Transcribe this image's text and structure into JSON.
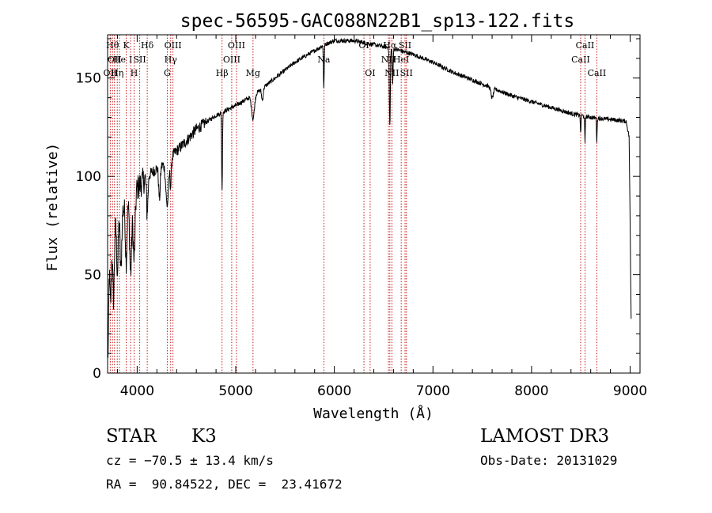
{
  "chart_data": {
    "type": "line",
    "title": "spec-56595-GAC088N22B1_sp13-122.fits",
    "xlabel": "Wavelength (Å)",
    "ylabel": "Flux (relative)",
    "xlim": [
      3700,
      9100
    ],
    "ylim": [
      0,
      172
    ],
    "x_ticks": [
      4000,
      5000,
      6000,
      7000,
      8000,
      9000
    ],
    "y_ticks": [
      0,
      50,
      100,
      150
    ],
    "grid": false,
    "continuum": [
      [
        3700,
        62
      ],
      [
        3800,
        80
      ],
      [
        3900,
        86
      ],
      [
        4000,
        94
      ],
      [
        4100,
        100
      ],
      [
        4200,
        104
      ],
      [
        4300,
        107
      ],
      [
        4400,
        113
      ],
      [
        4500,
        118
      ],
      [
        4600,
        124
      ],
      [
        4800,
        131
      ],
      [
        5000,
        136
      ],
      [
        5200,
        142
      ],
      [
        5400,
        150
      ],
      [
        5600,
        158
      ],
      [
        5800,
        164
      ],
      [
        5900,
        167
      ],
      [
        6000,
        169
      ],
      [
        6200,
        169
      ],
      [
        6400,
        167
      ],
      [
        6600,
        165
      ],
      [
        6800,
        162
      ],
      [
        7000,
        158
      ],
      [
        7200,
        153
      ],
      [
        7400,
        149
      ],
      [
        7600,
        145
      ],
      [
        7800,
        141
      ],
      [
        8000,
        138
      ],
      [
        8200,
        135
      ],
      [
        8400,
        132
      ],
      [
        8600,
        130
      ],
      [
        8800,
        129
      ],
      [
        8960,
        128
      ],
      [
        8990,
        120
      ],
      [
        9010,
        28
      ]
    ],
    "absorption_features": [
      {
        "x": 3705,
        "depth": 55,
        "width": 6
      },
      {
        "x": 3730,
        "depth": 32,
        "width": 8
      },
      {
        "x": 3760,
        "depth": 35,
        "width": 8
      },
      {
        "x": 3800,
        "depth": 28,
        "width": 8
      },
      {
        "x": 3835,
        "depth": 30,
        "width": 8
      },
      {
        "x": 3889,
        "depth": 28,
        "width": 8
      },
      {
        "x": 3934,
        "depth": 38,
        "width": 10
      },
      {
        "x": 3969,
        "depth": 34,
        "width": 10
      },
      {
        "x": 4102,
        "depth": 18,
        "width": 8
      },
      {
        "x": 4226,
        "depth": 16,
        "width": 8
      },
      {
        "x": 4305,
        "depth": 22,
        "width": 14
      },
      {
        "x": 4340,
        "depth": 14,
        "width": 6
      },
      {
        "x": 4861,
        "depth": 40,
        "width": 4
      },
      {
        "x": 5175,
        "depth": 12,
        "width": 14
      },
      {
        "x": 5270,
        "depth": 6,
        "width": 8
      },
      {
        "x": 5893,
        "depth": 22,
        "width": 4
      },
      {
        "x": 6563,
        "depth": 40,
        "width": 5
      },
      {
        "x": 6592,
        "depth": 18,
        "width": 4
      },
      {
        "x": 7600,
        "depth": 5,
        "width": 12
      },
      {
        "x": 8498,
        "depth": 10,
        "width": 3
      },
      {
        "x": 8542,
        "depth": 14,
        "width": 3
      },
      {
        "x": 8662,
        "depth": 12,
        "width": 3
      }
    ],
    "line_markers": [
      {
        "x": 3727,
        "label": "OII",
        "row": 2
      },
      {
        "x": 3750,
        "label": "Hθ",
        "row": 0
      },
      {
        "x": 3770,
        "label": "OII",
        "row": 1
      },
      {
        "x": 3798,
        "label": "Hη",
        "row": 2
      },
      {
        "x": 3820,
        "label": "He",
        "row": 1
      },
      {
        "x": 3889,
        "label": "K",
        "row": 0
      },
      {
        "x": 3934,
        "label": "I",
        "row": 1
      },
      {
        "x": 3969,
        "label": "H",
        "row": 2
      },
      {
        "x": 4026,
        "label": "SII",
        "row": 1
      },
      {
        "x": 4102,
        "label": "Hδ",
        "row": 0
      },
      {
        "x": 4305,
        "label": "G",
        "row": 2
      },
      {
        "x": 4340,
        "label": "Hγ",
        "row": 1
      },
      {
        "x": 4363,
        "label": "OIII",
        "row": 0
      },
      {
        "x": 4861,
        "label": "Hβ",
        "row": 2
      },
      {
        "x": 4959,
        "label": "OIII",
        "row": 1
      },
      {
        "x": 5007,
        "label": "OIII",
        "row": 0
      },
      {
        "x": 5175,
        "label": "Mg",
        "row": 2
      },
      {
        "x": 5893,
        "label": "Na",
        "row": 1
      },
      {
        "x": 6300,
        "label": "OI",
        "row": 0
      },
      {
        "x": 6363,
        "label": "OI",
        "row": 2
      },
      {
        "x": 6548,
        "label": "NII",
        "row": 1
      },
      {
        "x": 6563,
        "label": "Hα",
        "row": 0
      },
      {
        "x": 6583,
        "label": "NII",
        "row": 2
      },
      {
        "x": 6678,
        "label": "HeI",
        "row": 1
      },
      {
        "x": 6717,
        "label": "SII",
        "row": 0
      },
      {
        "x": 6731,
        "label": "SII",
        "row": 2
      },
      {
        "x": 8498,
        "label": "CaII",
        "row": 1
      },
      {
        "x": 8542,
        "label": "CaII",
        "row": 0
      },
      {
        "x": 8662,
        "label": "CaII",
        "row": 2
      }
    ]
  },
  "info": {
    "class_label": "STAR",
    "subclass": "K3",
    "survey": "LAMOST DR3",
    "redshift": "cz = −70.5 ± 13.4 km/s",
    "obs_date": "Obs-Date: 20131029",
    "coords": "RA =  90.84522, DEC =  23.41672"
  }
}
